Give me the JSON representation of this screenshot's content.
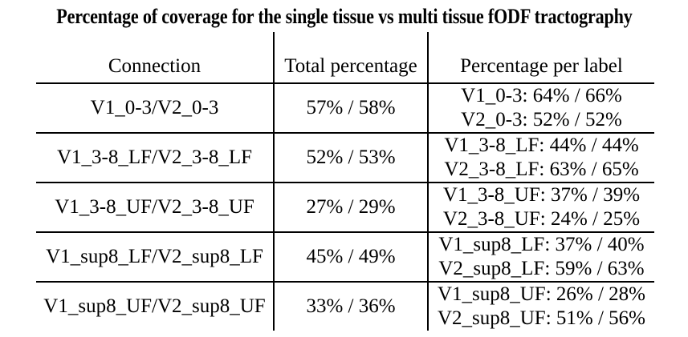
{
  "title": "Percentage of coverage for the single tissue vs multi tissue fODF tractography",
  "table": {
    "headers": {
      "connection": "Connection",
      "total": "Total percentage",
      "per_label": "Percentage per label"
    },
    "rows": [
      {
        "connection": "V1_0-3/V2_0-3",
        "total": "57% / 58%",
        "label1": "V1_0-3: 64% / 66%",
        "label2": "V2_0-3: 52% / 52%"
      },
      {
        "connection": "V1_3-8_LF/V2_3-8_LF",
        "total": "52% / 53%",
        "label1": "V1_3-8_LF: 44% / 44%",
        "label2": "V2_3-8_LF: 63% / 65%"
      },
      {
        "connection": "V1_3-8_UF/V2_3-8_UF",
        "total": "27% / 29%",
        "label1": "V1_3-8_UF: 37% / 39%",
        "label2": "V2_3-8_UF: 24% / 25%"
      },
      {
        "connection": "V1_sup8_LF/V2_sup8_LF",
        "total": "45% / 49%",
        "label1": "V1_sup8_LF: 37% / 40%",
        "label2": "V2_sup8_LF: 59% / 63%"
      },
      {
        "connection": "V1_sup8_UF/V2_sup8_UF",
        "total": "33% / 36%",
        "label1": "V1_sup8_UF: 26% / 28%",
        "label2": "V2_sup8_UF: 51% / 56%"
      }
    ]
  }
}
